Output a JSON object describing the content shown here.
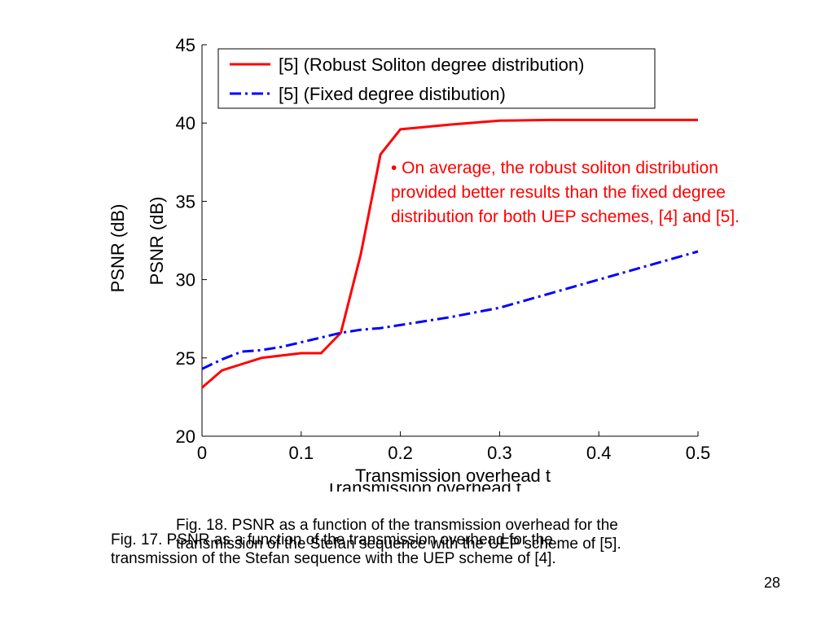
{
  "chart_data": {
    "type": "line",
    "xlabel": "Transmission overhead t",
    "ylabel": "PSNR (dB)",
    "back_ylabel": "PSNR (dB)",
    "back_xlabel": "Transmission overhead t",
    "xlim": [
      0,
      0.5
    ],
    "ylim": [
      20,
      45
    ],
    "xticks": [
      "0",
      "0.1",
      "0.2",
      "0.3",
      "0.4",
      "0.5"
    ],
    "yticks": [
      "20",
      "25",
      "30",
      "35",
      "40",
      "45"
    ],
    "grid": false,
    "legend_position": "top-left",
    "series": [
      {
        "name": "[5] (Robust Soliton degree distribution)",
        "color": "#ff0000",
        "style": "solid",
        "x": [
          0,
          0.02,
          0.04,
          0.06,
          0.08,
          0.1,
          0.12,
          0.14,
          0.16,
          0.18,
          0.2,
          0.25,
          0.3,
          0.35,
          0.4,
          0.45,
          0.5
        ],
        "y": [
          23.1,
          24.2,
          24.6,
          25.0,
          25.15,
          25.3,
          25.3,
          26.6,
          31.6,
          38.0,
          39.6,
          39.9,
          40.15,
          40.2,
          40.2,
          40.2,
          40.2
        ]
      },
      {
        "name": "[5] (Fixed degree distibution)",
        "color": "#0000ff",
        "style": "dashdot",
        "x": [
          0,
          0.02,
          0.04,
          0.06,
          0.08,
          0.1,
          0.12,
          0.14,
          0.16,
          0.18,
          0.2,
          0.25,
          0.3,
          0.35,
          0.4,
          0.45,
          0.5
        ],
        "y": [
          24.3,
          24.9,
          25.4,
          25.5,
          25.7,
          26.0,
          26.3,
          26.6,
          26.8,
          26.9,
          27.1,
          27.6,
          28.2,
          29.1,
          30.0,
          30.9,
          31.8
        ]
      }
    ]
  },
  "annotation": "• On average, the robust soliton distribution provided better results than the fixed degree distribution for both UEP schemes, [4] and [5].",
  "annotation_lines": [
    "• On average, the robust soliton distribution",
    "provided better results than the fixed degree",
    "distribution for both UEP schemes, [4] and [5]."
  ],
  "caption_fig18": [
    "Fig. 18. PSNR as a function of the transmission overhead for the",
    "transmission of the Stefan sequence with the UEP scheme of [5]."
  ],
  "caption_fig17": [
    "Fig. 17. PSNR as a function of the transmission overhead for the",
    "transmission of the Stefan sequence with the UEP scheme of [4]."
  ],
  "page_number": "28"
}
